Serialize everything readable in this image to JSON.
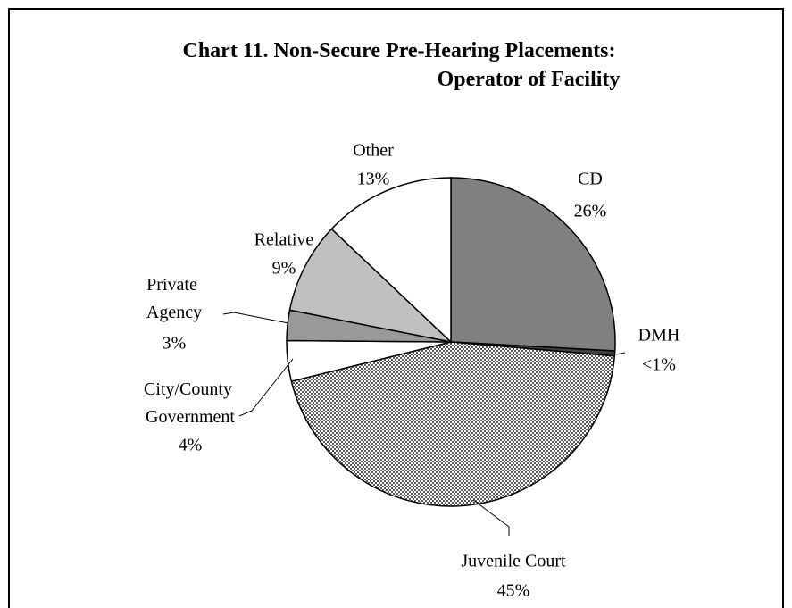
{
  "chart_data": {
    "type": "pie",
    "title": "Chart 11.   Non-Secure Pre-Hearing Placements: Operator of Facility",
    "categories": [
      "CD",
      "DMH",
      "Juvenile Court",
      "City/County Government",
      "Private Agency",
      "Relative",
      "Other"
    ],
    "values": [
      26,
      0.5,
      45,
      4,
      3,
      9,
      13
    ],
    "value_labels": [
      "26%",
      "<1%",
      "45%",
      "4%",
      "3%",
      "9%",
      "13%"
    ],
    "colors": [
      "#808080",
      "#404040",
      "#b0b0b0",
      "#ffffff",
      "#999999",
      "#c0c0c0",
      "#ffffff"
    ]
  }
}
